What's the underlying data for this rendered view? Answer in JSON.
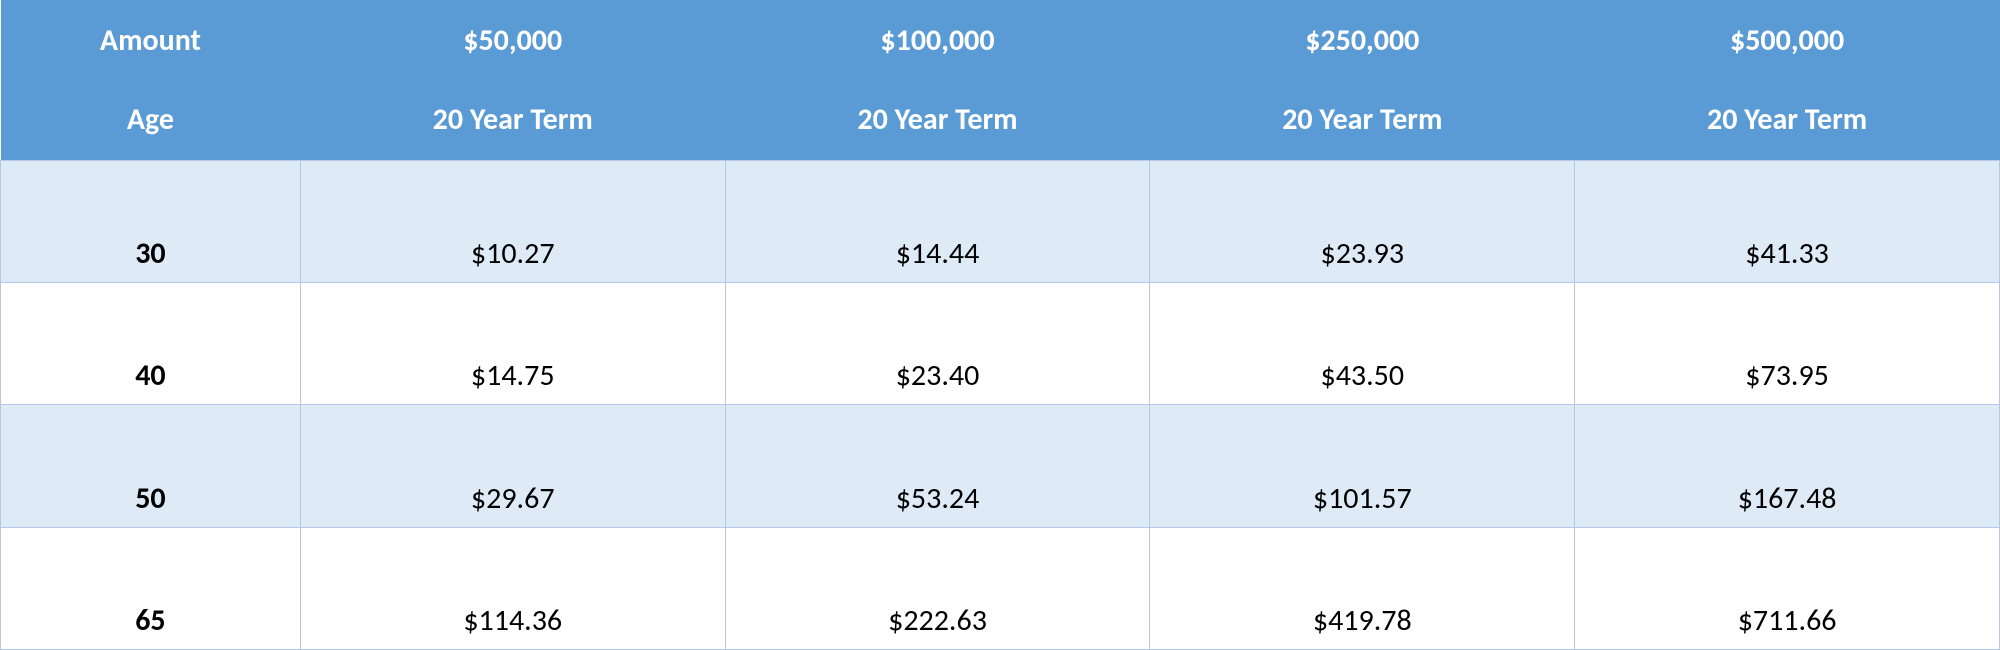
{
  "table": {
    "type": "table",
    "header_bg": "#5b9bd5",
    "header_text_color": "#ffffff",
    "header_fontsize": 30,
    "body_fontsize": 30,
    "body_text_color": "#000000",
    "row_odd_bg": "#deebf7",
    "row_even_bg": "#ffffff",
    "border_color": "#b4c7e7",
    "col_widths_pct": [
      15,
      21.25,
      21.25,
      21.25,
      21.25
    ],
    "header_row1": [
      "Amount",
      "$50,000",
      "$100,000",
      "$250,000",
      "$500,000"
    ],
    "header_row2": [
      "Age",
      "20 Year Term",
      "20 Year Term",
      "20 Year Term",
      "20 Year Term"
    ],
    "rows": [
      [
        "30",
        "$10.27",
        "$14.44",
        "$23.93",
        "$41.33"
      ],
      [
        "40",
        "$14.75",
        "$23.40",
        "$43.50",
        "$73.95"
      ],
      [
        "50",
        "$29.67",
        "$53.24",
        "$101.57",
        "$167.48"
      ],
      [
        "65",
        "$114.36",
        "$222.63",
        "$419.78",
        "$711.66"
      ]
    ]
  }
}
